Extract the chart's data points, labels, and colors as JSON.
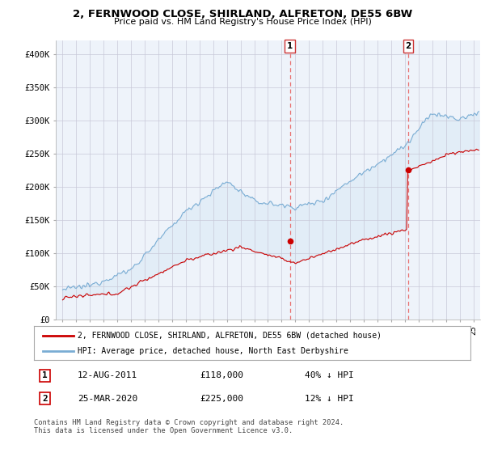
{
  "title": "2, FERNWOOD CLOSE, SHIRLAND, ALFRETON, DE55 6BW",
  "subtitle": "Price paid vs. HM Land Registry's House Price Index (HPI)",
  "ylabel_ticks": [
    "£0",
    "£50K",
    "£100K",
    "£150K",
    "£200K",
    "£250K",
    "£300K",
    "£350K",
    "£400K"
  ],
  "ytick_values": [
    0,
    50000,
    100000,
    150000,
    200000,
    250000,
    300000,
    350000,
    400000
  ],
  "ylim": [
    0,
    420000
  ],
  "xlim_start": 1994.5,
  "xlim_end": 2025.5,
  "transaction1": {
    "date_x": 2011.6,
    "price": 118000,
    "label": "1",
    "text": "12-AUG-2011",
    "amount": "£118,000",
    "pct": "40% ↓ HPI"
  },
  "transaction2": {
    "date_x": 2020.25,
    "price": 225000,
    "label": "2",
    "text": "25-MAR-2020",
    "amount": "£225,000",
    "pct": "12% ↓ HPI"
  },
  "legend_line1": "2, FERNWOOD CLOSE, SHIRLAND, ALFRETON, DE55 6BW (detached house)",
  "legend_line2": "HPI: Average price, detached house, North East Derbyshire",
  "footnote": "Contains HM Land Registry data © Crown copyright and database right 2024.\nThis data is licensed under the Open Government Licence v3.0.",
  "hpi_color": "#7aadd4",
  "price_color": "#cc0000",
  "shade_color": "#d8e8f5",
  "dashed_color": "#e87070",
  "background_color": "#ffffff",
  "plot_background": "#eef3fa"
}
